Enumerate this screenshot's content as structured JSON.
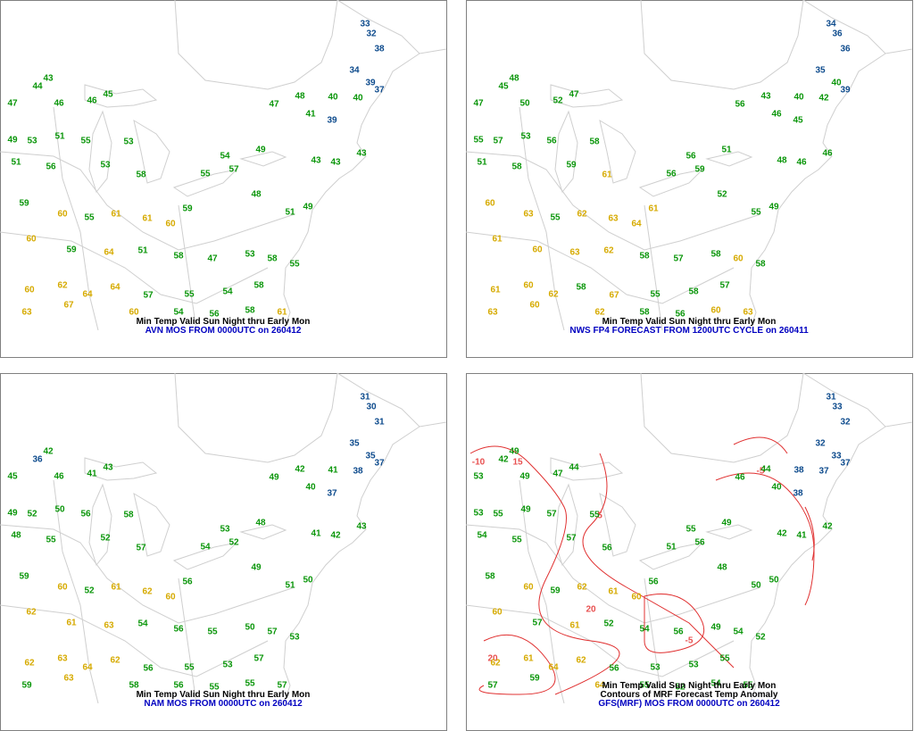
{
  "value_colors": [
    {
      "below": 40,
      "color": "#0c4a8c"
    },
    {
      "below": 60,
      "color": "#0a960a"
    },
    {
      "color": "#d6aa00"
    }
  ],
  "panels": [
    {
      "captions": [
        "Min Temp Valid Sun Night thru Early Mon",
        "AVN MOS FROM 0000UTC on 260412"
      ],
      "stations": [
        33,
        32,
        38,
        34,
        39,
        37,
        44,
        43,
        47,
        46,
        46,
        45,
        47,
        48,
        41,
        40,
        40,
        39,
        49,
        53,
        51,
        55,
        53,
        51,
        56,
        53,
        58,
        54,
        49,
        55,
        57,
        43,
        43,
        43,
        59,
        60,
        55,
        61,
        61,
        60,
        59,
        48,
        51,
        49,
        60,
        59,
        64,
        51,
        58,
        47,
        53,
        58,
        55,
        60,
        62,
        64,
        64,
        57,
        55,
        54,
        58,
        63,
        67,
        60,
        54,
        56,
        58,
        61
      ]
    },
    {
      "captions": [
        "Min Temp Valid Sun Night thru Early Mon",
        "NWS FP4 FORECAST FROM 1200UTC CYCLE on 260411"
      ],
      "stations": [
        34,
        36,
        36,
        35,
        40,
        39,
        45,
        48,
        47,
        50,
        52,
        47,
        56,
        43,
        46,
        40,
        42,
        45,
        55,
        57,
        53,
        56,
        58,
        51,
        58,
        59,
        61,
        56,
        51,
        56,
        59,
        48,
        46,
        46,
        60,
        63,
        55,
        62,
        63,
        64,
        61,
        52,
        55,
        49,
        61,
        60,
        63,
        62,
        58,
        57,
        58,
        60,
        58,
        61,
        60,
        62,
        58,
        67,
        55,
        58,
        57,
        63,
        60,
        62,
        58,
        56,
        60,
        63
      ]
    },
    {
      "captions": [
        "Min Temp Valid Sun Night thru Early Mon",
        "NAM MOS FROM 0000UTC on 260412"
      ],
      "stations": [
        31,
        30,
        31,
        35,
        35,
        37,
        36,
        42,
        45,
        46,
        41,
        43,
        49,
        42,
        40,
        41,
        38,
        37,
        49,
        52,
        50,
        56,
        58,
        48,
        55,
        52,
        57,
        53,
        48,
        54,
        52,
        41,
        42,
        43,
        59,
        60,
        52,
        61,
        62,
        60,
        56,
        49,
        51,
        50,
        62,
        61,
        63,
        54,
        56,
        55,
        50,
        57,
        53,
        62,
        63,
        64,
        62,
        56,
        55,
        53,
        57,
        59,
        63,
        58,
        56,
        55,
        55,
        57
      ]
    },
    {
      "captions": [
        "Min Temp Valid Sun Night thru Early Mon",
        "Contours of MRF Forecast Temp Anomaly",
        "GFS(MRF) MOS FROM 0000UTC on 260412"
      ],
      "contour_labels": [
        "-10",
        "15",
        "5",
        "-5",
        "20",
        "20",
        "-5"
      ],
      "stations": [
        31,
        33,
        32,
        32,
        33,
        37,
        42,
        49,
        53,
        49,
        47,
        44,
        46,
        44,
        40,
        38,
        37,
        38,
        53,
        55,
        49,
        57,
        55,
        54,
        55,
        57,
        56,
        55,
        49,
        51,
        56,
        42,
        41,
        42,
        58,
        60,
        59,
        62,
        61,
        60,
        56,
        48,
        50,
        50,
        60,
        57,
        61,
        52,
        54,
        56,
        49,
        54,
        52,
        62,
        61,
        64,
        62,
        56,
        53,
        53,
        55,
        57,
        59,
        64,
        55,
        52,
        54,
        55
      ]
    }
  ]
}
